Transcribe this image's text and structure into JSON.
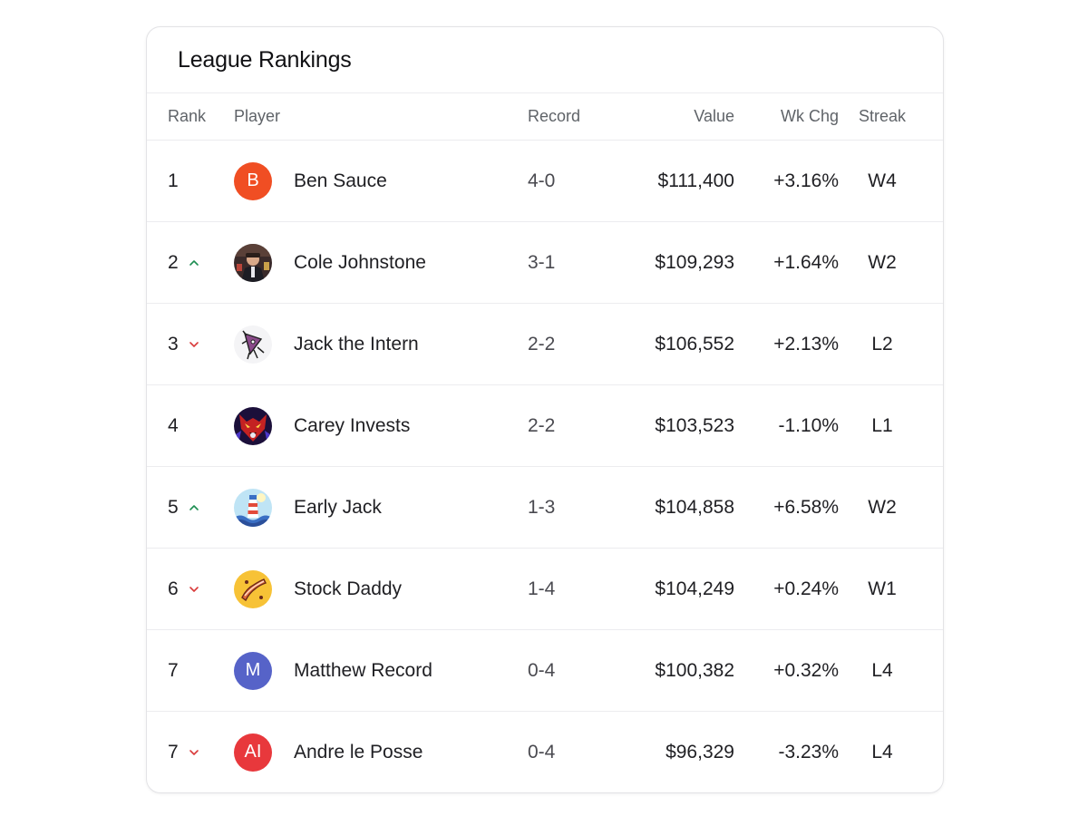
{
  "title": "League Rankings",
  "columns": {
    "rank": "Rank",
    "player": "Player",
    "record": "Record",
    "value": "Value",
    "wk_chg": "Wk Chg",
    "streak": "Streak"
  },
  "colors": {
    "positive": "#1e8e52",
    "negative": "#d93a3a"
  },
  "rows": [
    {
      "rank": "1",
      "trend": "none",
      "avatar": {
        "kind": "initials",
        "text": "B",
        "color": "#f04e23"
      },
      "name": "Ben Sauce",
      "record": "4-0",
      "value": "$111,400",
      "wk_chg": "+3.16%",
      "wk_dir": "pos",
      "streak": "W4"
    },
    {
      "rank": "2",
      "trend": "up",
      "avatar": {
        "kind": "photo",
        "icon": "portrait-photo-avatar"
      },
      "name": "Cole Johnstone",
      "record": "3-1",
      "value": "$109,293",
      "wk_chg": "+1.64%",
      "wk_dir": "pos",
      "streak": "W2"
    },
    {
      "rank": "3",
      "trend": "down",
      "avatar": {
        "kind": "photo",
        "icon": "cartoon-character-avatar"
      },
      "name": "Jack the Intern",
      "record": "2-2",
      "value": "$106,552",
      "wk_chg": "+2.13%",
      "wk_dir": "pos",
      "streak": "L2"
    },
    {
      "rank": "4",
      "trend": "none",
      "avatar": {
        "kind": "photo",
        "icon": "red-wolf-avatar"
      },
      "name": "Carey Invests",
      "record": "2-2",
      "value": "$103,523",
      "wk_chg": "-1.10%",
      "wk_dir": "neg",
      "streak": "L1"
    },
    {
      "rank": "5",
      "trend": "up",
      "avatar": {
        "kind": "photo",
        "icon": "lighthouse-avatar"
      },
      "name": "Early Jack",
      "record": "1-3",
      "value": "$104,858",
      "wk_chg": "+6.58%",
      "wk_dir": "pos",
      "streak": "W2"
    },
    {
      "rank": "6",
      "trend": "down",
      "avatar": {
        "kind": "photo",
        "icon": "bacon-avatar"
      },
      "name": "Stock Daddy",
      "record": "1-4",
      "value": "$104,249",
      "wk_chg": "+0.24%",
      "wk_dir": "pos",
      "streak": "W1"
    },
    {
      "rank": "7",
      "trend": "none",
      "avatar": {
        "kind": "initials",
        "text": "M",
        "color": "#5663c8"
      },
      "name": "Matthew Record",
      "record": "0-4",
      "value": "$100,382",
      "wk_chg": "+0.32%",
      "wk_dir": "pos",
      "streak": "L4"
    },
    {
      "rank": "7",
      "trend": "down",
      "avatar": {
        "kind": "initials",
        "text": "AI",
        "color": "#e8383c"
      },
      "name": "Andre le Posse",
      "record": "0-4",
      "value": "$96,329",
      "wk_chg": "-3.23%",
      "wk_dir": "neg",
      "streak": "L4"
    }
  ]
}
